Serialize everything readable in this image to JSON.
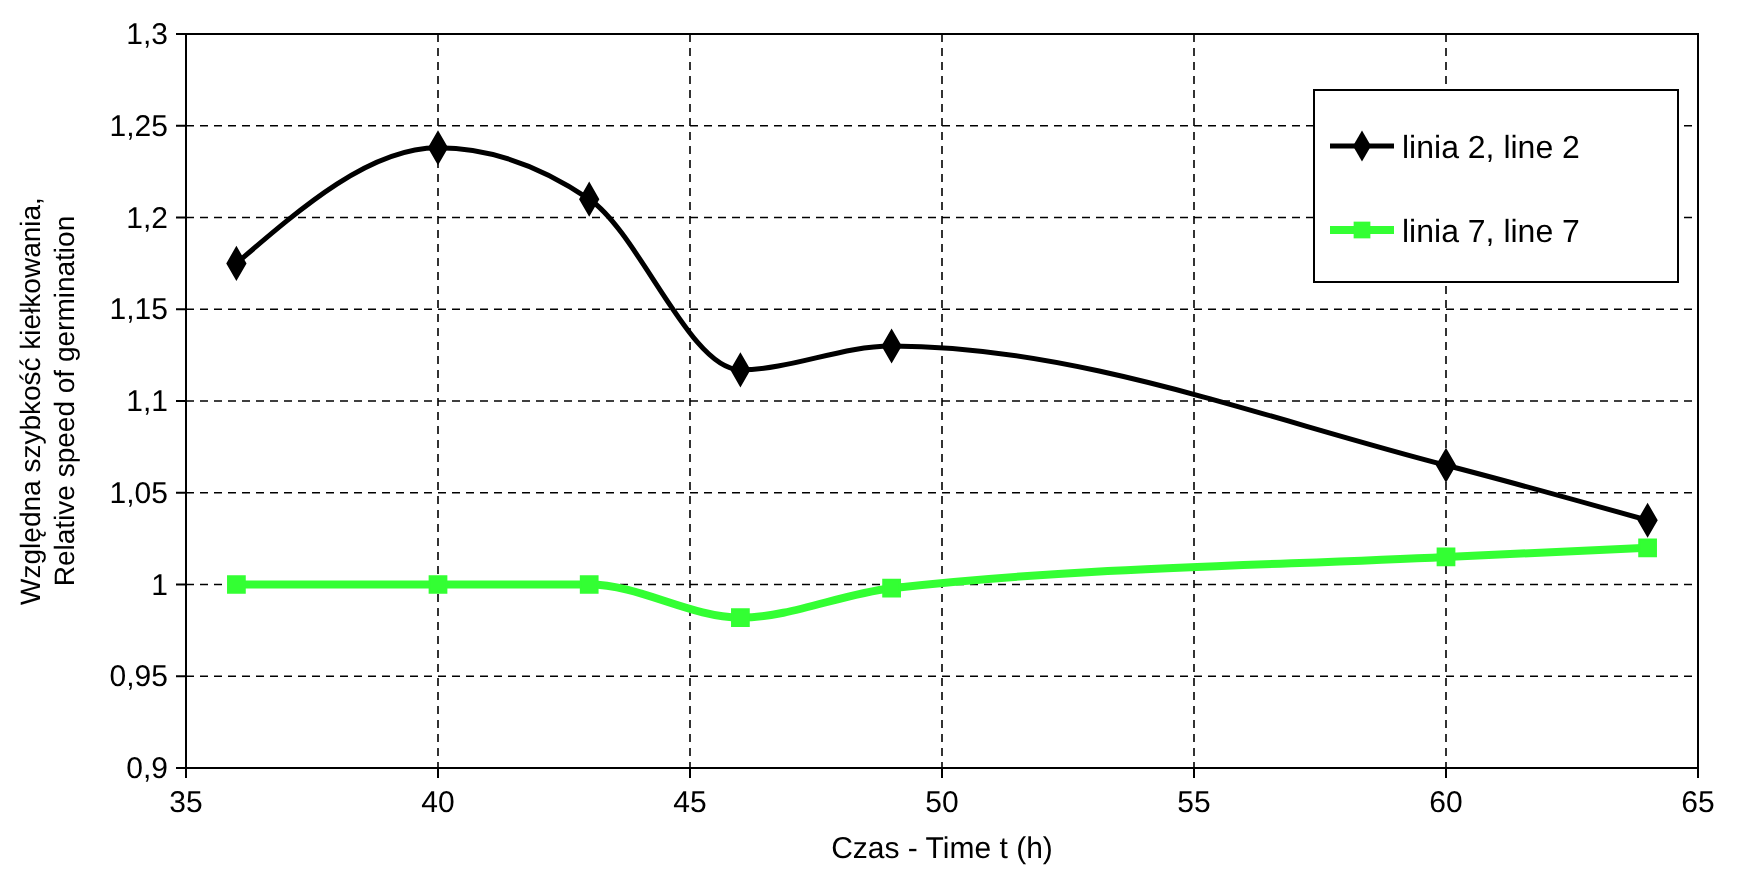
{
  "chart_data": {
    "type": "line",
    "xlabel": "Czas - Time  t (h)",
    "ylabel": "Względna szybkość kiełkowania,\nRelative speed of germination",
    "x": [
      36,
      40,
      43,
      46,
      49,
      60,
      64
    ],
    "series": [
      {
        "name": "linia 2, line 2",
        "color": "#000000",
        "marker": "diamond",
        "values": [
          1.175,
          1.238,
          1.21,
          1.117,
          1.13,
          1.065,
          1.035
        ]
      },
      {
        "name": "linia 7, line 7",
        "color": "#33ff33",
        "marker": "square",
        "values": [
          1.0,
          1.0,
          1.0,
          0.982,
          0.998,
          1.015,
          1.02
        ]
      }
    ],
    "xlim": [
      35,
      65
    ],
    "xticks": [
      35,
      40,
      45,
      50,
      55,
      60,
      65
    ],
    "ylim": [
      0.9,
      1.3
    ],
    "yticks": [
      {
        "value": 0.9,
        "label": "0,9"
      },
      {
        "value": 0.95,
        "label": "0,95"
      },
      {
        "value": 1,
        "label": "1"
      },
      {
        "value": 1.05,
        "label": "1,05"
      },
      {
        "value": 1.1,
        "label": "1,1"
      },
      {
        "value": 1.15,
        "label": "1,15"
      },
      {
        "value": 1.2,
        "label": "1,2"
      },
      {
        "value": 1.25,
        "label": "1,25"
      },
      {
        "value": 1.3,
        "label": "1,3"
      }
    ],
    "grid": true,
    "legend": "top right",
    "line_style": "solid"
  }
}
